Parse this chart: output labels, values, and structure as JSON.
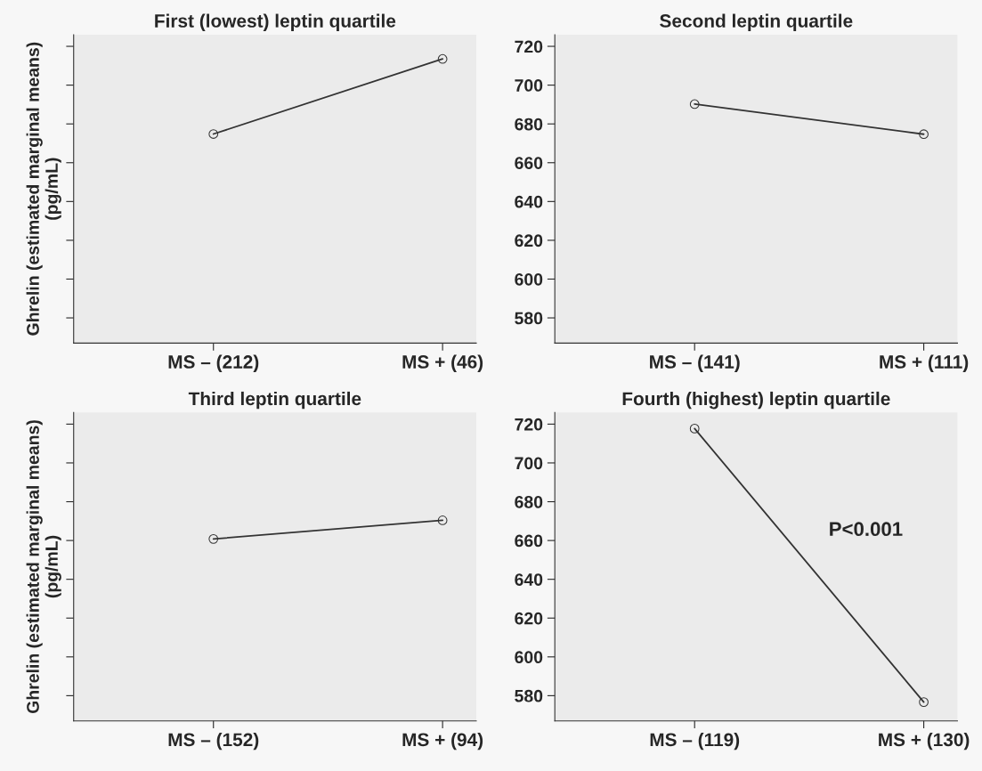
{
  "chart_data": [
    {
      "type": "line",
      "title": "First (lowest) leptin quartile",
      "ylabel": "Ghrelin (estimated marginal means)\n(pg/mL)",
      "categories": [
        "MS – (212)",
        "MS + (46)"
      ],
      "values": [
        674.8,
        713.5
      ],
      "color": "#333333",
      "marker": "circle",
      "line_style": "solid",
      "ylim": [
        567,
        726
      ],
      "yticks": [
        580,
        600,
        620,
        640,
        660,
        680,
        700,
        720
      ],
      "tick_labels": "x",
      "grid": false
    },
    {
      "type": "line",
      "title": "Second leptin quartile",
      "categories": [
        "MS – (141)",
        "MS + (111)"
      ],
      "values": [
        690.2,
        674.7
      ],
      "color": "#333333",
      "marker": "circle",
      "line_style": "solid",
      "ylim": [
        567,
        726
      ],
      "yticks": [
        580,
        600,
        620,
        640,
        660,
        680,
        700,
        720
      ],
      "grid": false
    },
    {
      "type": "line",
      "title": "Third leptin quartile",
      "ylabel": "Ghrelin (estimated marginal means)\n(pg/mL)",
      "categories": [
        "MS – (152)",
        "MS + (94)"
      ],
      "values": [
        660.8,
        670.4
      ],
      "color": "#333333",
      "marker": "circle",
      "line_style": "solid",
      "ylim": [
        567,
        726
      ],
      "yticks": [
        580,
        600,
        620,
        640,
        660,
        680,
        700,
        720
      ],
      "tick_labels": "x",
      "grid": false
    },
    {
      "type": "line",
      "title": "Fourth (highest) leptin quartile",
      "categories": [
        "MS – (119)",
        "MS + (130)"
      ],
      "values": [
        717.7,
        576.7
      ],
      "color": "#333333",
      "marker": "circle",
      "line_style": "solid",
      "ylim": [
        567,
        726
      ],
      "yticks": [
        580,
        600,
        620,
        640,
        660,
        680,
        700,
        720
      ],
      "grid": false,
      "annotations": [
        "P<0.001"
      ]
    }
  ]
}
